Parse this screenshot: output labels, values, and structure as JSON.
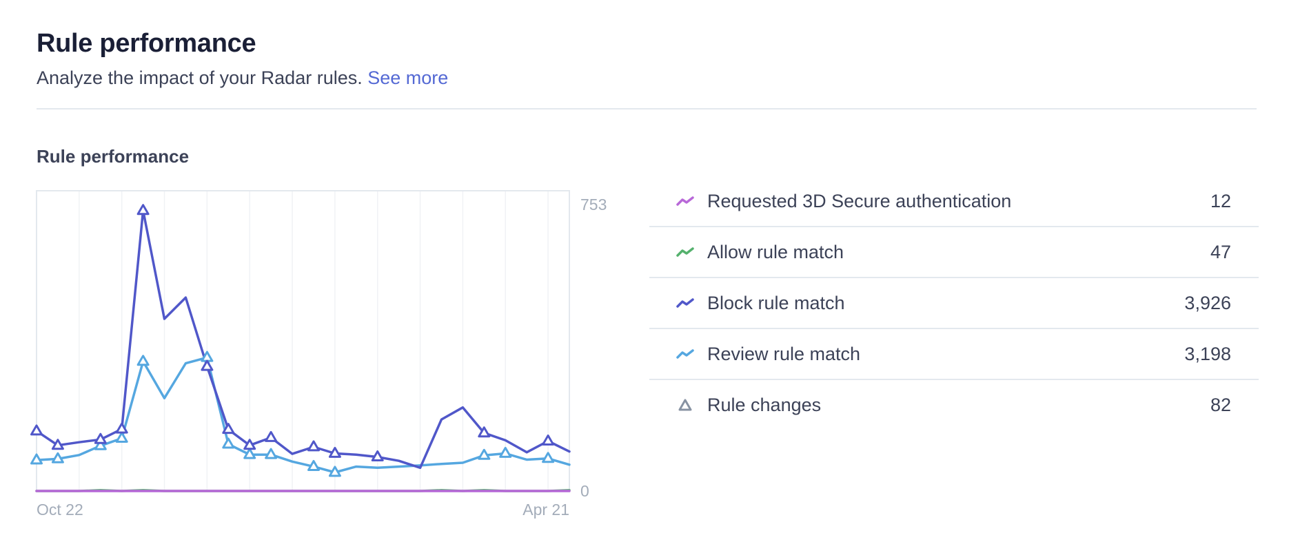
{
  "header": {
    "title": "Rule performance",
    "subtitle": "Analyze the impact of your Radar rules.",
    "see_more_label": "See more"
  },
  "section": {
    "title": "Rule performance"
  },
  "colors": {
    "block": "#5057c9",
    "review": "#55a7e0",
    "allow": "#54b16d",
    "requested_3ds": "#b868d8",
    "rule_changes": "#8792a2"
  },
  "legend": [
    {
      "label": "Requested 3D Secure authentication",
      "value": "12",
      "icon": "line-chart-icon",
      "color": "#b868d8"
    },
    {
      "label": "Allow rule match",
      "value": "47",
      "icon": "line-chart-icon",
      "color": "#54b16d"
    },
    {
      "label": "Block rule match",
      "value": "3,926",
      "icon": "line-chart-icon",
      "color": "#5057c9"
    },
    {
      "label": "Review rule match",
      "value": "3,198",
      "icon": "line-chart-icon",
      "color": "#55a7e0"
    },
    {
      "label": "Rule changes",
      "value": "82",
      "icon": "triangle-icon",
      "color": "#8792a2"
    }
  ],
  "chart_data": {
    "type": "line",
    "title": "",
    "xlabel": "",
    "ylabel": "",
    "x_tick_labels": [
      "Oct 22",
      "Apr 21"
    ],
    "y_tick_labels": [
      "753",
      "0"
    ],
    "ylim": [
      0,
      753
    ],
    "grid": true,
    "legend_position": "right",
    "point_count": 26,
    "series": [
      {
        "name": "Block rule match",
        "color": "#5057c9",
        "values": [
          155,
          118,
          126,
          133,
          160,
          725,
          445,
          500,
          322,
          159,
          118,
          138,
          96,
          114,
          97,
          94,
          88,
          78,
          60,
          185,
          216,
          150,
          131,
          100,
          129,
          102
        ],
        "rule_change_markers": [
          0,
          1,
          3,
          4,
          5,
          8,
          9,
          10,
          11,
          13,
          14,
          16,
          21,
          24
        ]
      },
      {
        "name": "Review rule match",
        "color": "#55a7e0",
        "values": [
          80,
          83,
          93,
          117,
          136,
          335,
          240,
          330,
          345,
          121,
          94,
          94,
          76,
          63,
          48,
          63,
          60,
          63,
          66,
          70,
          73,
          92,
          97,
          81,
          84,
          68
        ],
        "rule_change_markers": [
          0,
          1,
          3,
          4,
          5,
          8,
          9,
          10,
          11,
          13,
          14,
          21,
          22,
          24
        ]
      },
      {
        "name": "Allow rule match",
        "color": "#54b16d",
        "values": [
          0,
          0,
          0,
          2,
          0,
          2,
          0,
          0,
          0,
          0,
          0,
          0,
          0,
          0,
          0,
          0,
          0,
          0,
          0,
          2,
          0,
          2,
          0,
          0,
          0,
          2
        ]
      },
      {
        "name": "Requested 3D Secure authentication",
        "color": "#b868d8",
        "values": [
          0,
          0,
          0,
          0,
          0,
          0,
          0,
          0,
          0,
          0,
          0,
          0,
          0,
          0,
          0,
          0,
          0,
          0,
          0,
          0,
          0,
          0,
          0,
          0,
          0,
          0
        ]
      }
    ]
  }
}
